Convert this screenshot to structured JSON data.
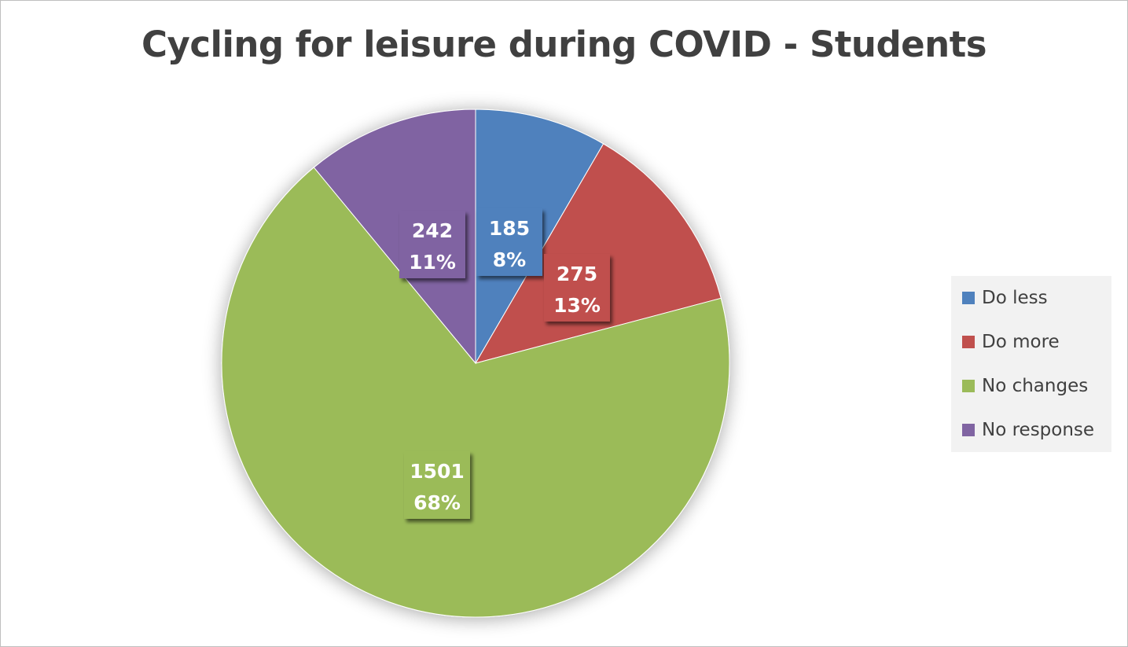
{
  "chart_data": {
    "type": "pie",
    "title": "Cycling for leisure during COVID - Students",
    "categories": [
      "Do less",
      "Do more",
      "No changes",
      "No response"
    ],
    "values": [
      185,
      275,
      1501,
      242
    ],
    "percent_labels": [
      "8%",
      "13%",
      "68%",
      "11%"
    ],
    "colors": [
      "#4f81bd",
      "#c0504d",
      "#9bbb59",
      "#8064a2"
    ],
    "start_angle": "12 o'clock",
    "direction": "clockwise",
    "legend_position": "right"
  }
}
